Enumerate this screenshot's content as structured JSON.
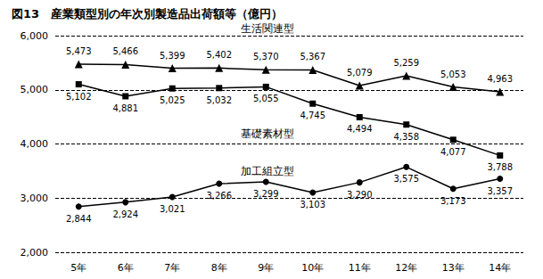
{
  "chart_data": {
    "type": "line",
    "title": "図13　産業類型別の年次別製造品出荷額等（億円）",
    "categories": [
      "5年",
      "6年",
      "7年",
      "8年",
      "9年",
      "10年",
      "11年",
      "12年",
      "13年",
      "14年"
    ],
    "series": [
      {
        "name": "生活関連型",
        "color": "#000000",
        "marker": "triangle",
        "line_style": "solid",
        "values": [
          5473,
          5466,
          5399,
          5402,
          5370,
          5367,
          5079,
          5259,
          5053,
          4963
        ],
        "value_labels": [
          "5,473",
          "5,466",
          "5,399",
          "5,402",
          "5,370",
          "5,367",
          "5,079",
          "5,259",
          "5,053",
          "4,963"
        ]
      },
      {
        "name": "基礎素材型",
        "color": "#000000",
        "marker": "square",
        "line_style": "solid",
        "values": [
          5102,
          4881,
          5025,
          5032,
          5055,
          4745,
          4494,
          4358,
          4077,
          3788
        ],
        "value_labels": [
          "5,102",
          "4,881",
          "5,025",
          "5,032",
          "5,055",
          "4,745",
          "4,494",
          "4,358",
          "4,077",
          "3,788"
        ]
      },
      {
        "name": "加工組立型",
        "color": "#000000",
        "marker": "circle",
        "line_style": "solid",
        "values": [
          2844,
          2924,
          3021,
          3266,
          3299,
          3103,
          3290,
          3575,
          3173,
          3357
        ],
        "value_labels": [
          "2,844",
          "2,924",
          "3,021",
          "3,266",
          "3,299",
          "3,103",
          "3,290",
          "3,575",
          "3,173",
          "3,357"
        ]
      }
    ],
    "ylim": [
      2000,
      6000
    ],
    "yticks": [
      {
        "value": 2000,
        "label": "2,000"
      },
      {
        "value": 3000,
        "label": "3,000"
      },
      {
        "value": 4000,
        "label": "4,000"
      },
      {
        "value": 5000,
        "label": "5,000"
      },
      {
        "value": 6000,
        "label": "6,000"
      }
    ],
    "grid": true,
    "data_labels": true
  }
}
